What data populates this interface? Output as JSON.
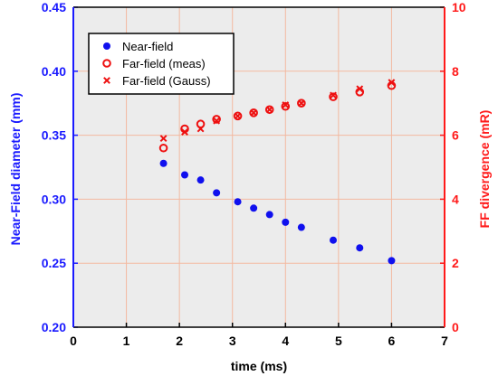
{
  "chart_data": {
    "type": "scatter",
    "xlabel": "time (ms)",
    "ylabel_left": "Near-Field diameter  (mm)",
    "ylabel_right": "FF divergence (mR)",
    "xlim": [
      0,
      7
    ],
    "ylim_left": [
      0.2,
      0.45
    ],
    "ylim_right": [
      0,
      10
    ],
    "x_ticks": [
      "0",
      "1",
      "2",
      "3",
      "4",
      "5",
      "6",
      "7"
    ],
    "y_left_ticks": [
      "0.20",
      "0.25",
      "0.30",
      "0.35",
      "0.40",
      "0.45"
    ],
    "y_right_ticks": [
      "0",
      "2",
      "4",
      "6",
      "8",
      "10"
    ],
    "grid": true,
    "legend_position": "top-left",
    "colors": {
      "left_axis": "#1a1aff",
      "right_axis": "#ff1a1a",
      "grid": "#f3b9a0",
      "plot_bg": "#ececec"
    },
    "series": [
      {
        "name": "Near-field",
        "axis": "left",
        "marker": "filled-circle",
        "color": "#1010ee",
        "x": [
          1.7,
          2.1,
          2.4,
          2.7,
          3.1,
          3.4,
          3.7,
          4.0,
          4.3,
          4.9,
          5.4,
          6.0
        ],
        "y": [
          0.328,
          0.319,
          0.315,
          0.305,
          0.298,
          0.293,
          0.288,
          0.282,
          0.278,
          0.268,
          0.262,
          0.252
        ]
      },
      {
        "name": "Far-field (meas)",
        "axis": "right",
        "marker": "open-circle",
        "color": "#ee1010",
        "x": [
          1.7,
          2.1,
          2.4,
          2.7,
          3.1,
          3.4,
          3.7,
          4.0,
          4.3,
          4.9,
          5.4,
          6.0
        ],
        "y": [
          5.6,
          6.2,
          6.35,
          6.5,
          6.6,
          6.7,
          6.8,
          6.9,
          7.0,
          7.2,
          7.35,
          7.55
        ]
      },
      {
        "name": "Far-field (Gauss)",
        "axis": "right",
        "marker": "cross",
        "color": "#ee1010",
        "x": [
          1.7,
          2.1,
          2.4,
          2.7,
          3.1,
          3.4,
          3.7,
          4.0,
          4.3,
          4.9,
          5.4,
          6.0
        ],
        "y": [
          5.9,
          6.1,
          6.2,
          6.45,
          6.6,
          6.7,
          6.8,
          6.95,
          7.0,
          7.25,
          7.45,
          7.65
        ]
      }
    ]
  }
}
